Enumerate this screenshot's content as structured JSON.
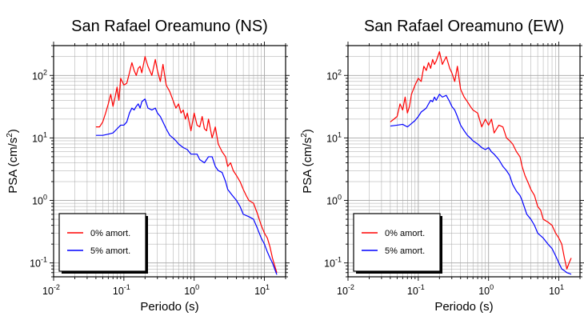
{
  "chart_data": [
    {
      "type": "line",
      "title": "San Rafael Oreamuno (NS)",
      "xlabel": "Periodo (s)",
      "ylabel": "PSA (cm/s",
      "ylabel_sup": "2",
      "ylabel_close": ")",
      "xscale": "log",
      "yscale": "log",
      "xlim": [
        0.01,
        20
      ],
      "ylim": [
        0.06,
        300
      ],
      "grid": true,
      "legend_position": "bottom-left",
      "x_ticks": [
        {
          "base": "10",
          "exp": "-2",
          "value": 0.01
        },
        {
          "base": "10",
          "exp": "-1",
          "value": 0.1
        },
        {
          "base": "10",
          "exp": "0",
          "value": 1
        },
        {
          "base": "10",
          "exp": "1",
          "value": 10
        }
      ],
      "y_ticks": [
        {
          "base": "10",
          "exp": "-1",
          "value": 0.1
        },
        {
          "base": "10",
          "exp": "0",
          "value": 1
        },
        {
          "base": "10",
          "exp": "1",
          "value": 10
        },
        {
          "base": "10",
          "exp": "2",
          "value": 100
        }
      ],
      "series": [
        {
          "name": "0% amort.",
          "color": "#ff0000",
          "x": [
            0.04,
            0.045,
            0.05,
            0.055,
            0.06,
            0.065,
            0.07,
            0.075,
            0.08,
            0.085,
            0.09,
            0.1,
            0.11,
            0.12,
            0.13,
            0.14,
            0.15,
            0.16,
            0.17,
            0.18,
            0.2,
            0.22,
            0.25,
            0.28,
            0.3,
            0.33,
            0.36,
            0.4,
            0.45,
            0.5,
            0.55,
            0.6,
            0.65,
            0.7,
            0.75,
            0.8,
            0.9,
            1.0,
            1.1,
            1.2,
            1.3,
            1.4,
            1.5,
            1.6,
            1.8,
            2.0,
            2.2,
            2.5,
            2.8,
            3.0,
            3.3,
            3.6,
            4.0,
            4.5,
            5.0,
            5.5,
            6.0,
            7.0,
            8.0,
            9.0,
            10,
            11,
            12,
            13,
            14,
            15
          ],
          "y": [
            15,
            15,
            18,
            25,
            35,
            50,
            32,
            45,
            65,
            40,
            90,
            70,
            75,
            110,
            160,
            120,
            100,
            130,
            140,
            110,
            200,
            140,
            100,
            180,
            120,
            80,
            150,
            70,
            55,
            40,
            30,
            35,
            25,
            28,
            20,
            25,
            13,
            25,
            16,
            15,
            22,
            14,
            13,
            20,
            10,
            15,
            8,
            6,
            5,
            3.5,
            4,
            3,
            2.5,
            2,
            1.5,
            1.2,
            1,
            0.9,
            0.6,
            0.4,
            0.3,
            0.25,
            0.18,
            0.12,
            0.09,
            0.07
          ]
        },
        {
          "name": "5% amort.",
          "color": "#0000ff",
          "x": [
            0.04,
            0.05,
            0.06,
            0.07,
            0.08,
            0.09,
            0.1,
            0.11,
            0.12,
            0.13,
            0.14,
            0.15,
            0.16,
            0.17,
            0.18,
            0.2,
            0.22,
            0.25,
            0.28,
            0.3,
            0.33,
            0.36,
            0.4,
            0.45,
            0.5,
            0.55,
            0.6,
            0.7,
            0.8,
            0.9,
            1.0,
            1.1,
            1.2,
            1.4,
            1.6,
            1.8,
            2.0,
            2.2,
            2.5,
            2.8,
            3.0,
            3.5,
            4.0,
            4.5,
            5.0,
            6.0,
            7.0,
            8.0,
            9.0,
            10,
            11,
            12,
            13,
            14,
            15
          ],
          "y": [
            11,
            11,
            11.5,
            12,
            14,
            16,
            16,
            18,
            25,
            30,
            28,
            32,
            35,
            30,
            38,
            42,
            30,
            28,
            30,
            25,
            22,
            18,
            14,
            11,
            10,
            9,
            8,
            7,
            6.5,
            5.5,
            5.5,
            5.5,
            4.5,
            4,
            5,
            5,
            3.5,
            3,
            2.8,
            2,
            1.5,
            1.2,
            1,
            0.8,
            0.6,
            0.55,
            0.5,
            0.35,
            0.25,
            0.2,
            0.15,
            0.12,
            0.1,
            0.08,
            0.065
          ]
        }
      ]
    },
    {
      "type": "line",
      "title": "San Rafael Oreamuno (EW)",
      "xlabel": "Periodo (s)",
      "ylabel": "PSA (cm/s",
      "ylabel_sup": "2",
      "ylabel_close": ")",
      "xscale": "log",
      "yscale": "log",
      "xlim": [
        0.01,
        20
      ],
      "ylim": [
        0.06,
        300
      ],
      "grid": true,
      "legend_position": "bottom-left",
      "x_ticks": [
        {
          "base": "10",
          "exp": "-2",
          "value": 0.01
        },
        {
          "base": "10",
          "exp": "-1",
          "value": 0.1
        },
        {
          "base": "10",
          "exp": "0",
          "value": 1
        },
        {
          "base": "10",
          "exp": "1",
          "value": 10
        }
      ],
      "y_ticks": [
        {
          "base": "10",
          "exp": "-1",
          "value": 0.1
        },
        {
          "base": "10",
          "exp": "0",
          "value": 1
        },
        {
          "base": "10",
          "exp": "1",
          "value": 10
        },
        {
          "base": "10",
          "exp": "2",
          "value": 100
        }
      ],
      "series": [
        {
          "name": "0% amort.",
          "color": "#ff0000",
          "x": [
            0.04,
            0.045,
            0.05,
            0.055,
            0.06,
            0.065,
            0.07,
            0.075,
            0.08,
            0.09,
            0.1,
            0.11,
            0.12,
            0.13,
            0.14,
            0.15,
            0.16,
            0.17,
            0.18,
            0.2,
            0.22,
            0.25,
            0.28,
            0.3,
            0.33,
            0.36,
            0.4,
            0.45,
            0.5,
            0.55,
            0.6,
            0.7,
            0.8,
            0.9,
            1.0,
            1.1,
            1.2,
            1.4,
            1.6,
            1.8,
            2.0,
            2.2,
            2.5,
            2.8,
            3.0,
            3.3,
            3.6,
            4.0,
            4.5,
            5.0,
            5.5,
            6.0,
            7.0,
            8.0,
            9.0,
            10,
            11,
            12,
            13,
            14,
            15
          ],
          "y": [
            18,
            20,
            22,
            35,
            28,
            45,
            25,
            32,
            50,
            70,
            90,
            80,
            140,
            120,
            160,
            130,
            180,
            150,
            170,
            240,
            150,
            200,
            130,
            110,
            80,
            140,
            60,
            45,
            38,
            32,
            28,
            25,
            15,
            20,
            16,
            20,
            12,
            16,
            15,
            10,
            9,
            8,
            6,
            5,
            3.5,
            2.5,
            2,
            1.5,
            1.2,
            0.8,
            0.7,
            0.5,
            0.45,
            0.4,
            0.3,
            0.25,
            0.2,
            0.12,
            0.08,
            0.1,
            0.12
          ]
        },
        {
          "name": "5% amort.",
          "color": "#0000ff",
          "x": [
            0.04,
            0.05,
            0.06,
            0.07,
            0.08,
            0.09,
            0.1,
            0.11,
            0.12,
            0.13,
            0.14,
            0.15,
            0.16,
            0.17,
            0.18,
            0.2,
            0.22,
            0.25,
            0.28,
            0.3,
            0.33,
            0.36,
            0.4,
            0.45,
            0.5,
            0.55,
            0.6,
            0.7,
            0.8,
            0.9,
            1.0,
            1.1,
            1.2,
            1.4,
            1.6,
            1.8,
            2.0,
            2.2,
            2.5,
            2.8,
            3.0,
            3.5,
            4.0,
            4.5,
            5.0,
            6.0,
            7.0,
            8.0,
            9.0,
            10,
            11,
            12,
            13,
            14,
            15
          ],
          "y": [
            15.5,
            16,
            16.5,
            15,
            17,
            19,
            22,
            26,
            28,
            30,
            35,
            40,
            38,
            45,
            40,
            50,
            45,
            48,
            38,
            32,
            28,
            22,
            16,
            13,
            11,
            10,
            9,
            8,
            7,
            6.5,
            7,
            6,
            5.5,
            4.5,
            3.5,
            3,
            2.5,
            1.8,
            1.4,
            1.2,
            1,
            0.6,
            0.5,
            0.4,
            0.3,
            0.25,
            0.2,
            0.17,
            0.13,
            0.1,
            0.08,
            0.075,
            0.07,
            0.068,
            0.066
          ]
        }
      ]
    }
  ]
}
